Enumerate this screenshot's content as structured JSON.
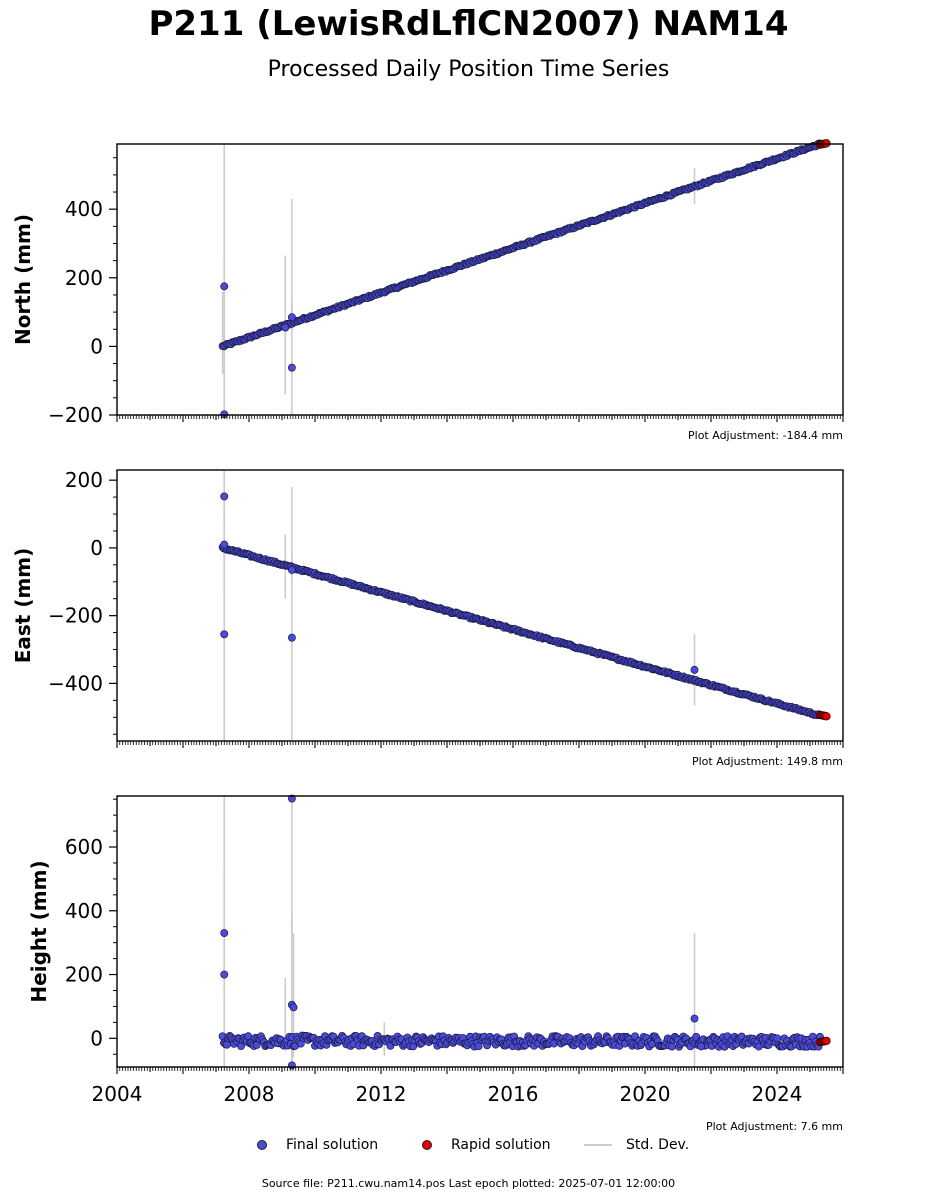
{
  "title": "P211 (LewisRdLflCN2007) NAM14",
  "subtitle": "Processed Daily Position Time Series",
  "footer": "Source file: P211.cwu.nam14.pos  Last epoch plotted: 2025-07-01 12:00:00",
  "legend": [
    {
      "label": "Final solution",
      "kind": "dot",
      "color": "#4b4bdb"
    },
    {
      "label": "Rapid solution",
      "kind": "dot",
      "color": "#e00000"
    },
    {
      "label": "Std. Dev.",
      "kind": "line",
      "color": "#cccccc"
    }
  ],
  "colors": {
    "final": "#4b4bdb",
    "rapid": "#e00000",
    "stddev": "#cccccc",
    "edge": "#1a1a40"
  },
  "chart_data": [
    {
      "type": "scatter",
      "ylabel": "North (mm)",
      "adjustment": "Plot Adjustment: -184.4 mm",
      "xlim": [
        2004.0,
        2026.0
      ],
      "ylim": [
        -200,
        590
      ],
      "yticks": [
        -200,
        0,
        200,
        400
      ],
      "x_tick_labels_shown": false,
      "xticks": [
        2004,
        2008,
        2012,
        2016,
        2020,
        2024
      ],
      "trend": {
        "start": [
          2007.2,
          0
        ],
        "end": [
          2025.3,
          590
        ]
      },
      "rapid": {
        "start": [
          2025.3,
          588
        ],
        "end": [
          2025.5,
          592
        ]
      },
      "outliers": [
        {
          "x": 2007.25,
          "y": 175,
          "err_lo": 85,
          "err_hi": 270
        },
        {
          "x": 2007.25,
          "y": -198,
          "err_lo": -200,
          "err_hi": 590
        },
        {
          "x": 2009.3,
          "y": -62,
          "err_lo": -200,
          "err_hi": 430
        },
        {
          "x": 2009.3,
          "y": 85,
          "err_lo": 45,
          "err_hi": 130
        },
        {
          "x": 2009.1,
          "y": 55,
          "err_lo": -140,
          "err_hi": 265
        }
      ],
      "errbars": [
        {
          "x": 2007.2,
          "lo": -80,
          "hi": 160
        },
        {
          "x": 2021.5,
          "lo": 415,
          "hi": 520
        }
      ]
    },
    {
      "type": "scatter",
      "ylabel": "East (mm)",
      "adjustment": "Plot Adjustment: 149.8 mm",
      "xlim": [
        2004.0,
        2026.0
      ],
      "ylim": [
        -570,
        230
      ],
      "yticks": [
        -400,
        -200,
        0,
        200
      ],
      "x_tick_labels_shown": false,
      "xticks": [
        2004,
        2008,
        2012,
        2016,
        2020,
        2024
      ],
      "trend": {
        "start": [
          2007.2,
          0
        ],
        "end": [
          2025.3,
          -495
        ]
      },
      "rapid": {
        "start": [
          2025.3,
          -493
        ],
        "end": [
          2025.5,
          -497
        ]
      },
      "outliers": [
        {
          "x": 2007.25,
          "y": 152,
          "err_lo": 70,
          "err_hi": 230
        },
        {
          "x": 2007.25,
          "y": 10,
          "err_lo": -130,
          "err_hi": 110
        },
        {
          "x": 2007.25,
          "y": -255,
          "err_lo": -570,
          "err_hi": 230
        },
        {
          "x": 2009.3,
          "y": -265,
          "err_lo": -570,
          "err_hi": 180
        },
        {
          "x": 2009.3,
          "y": -65,
          "err_lo": -90,
          "err_hi": -20
        },
        {
          "x": 2021.5,
          "y": -360,
          "err_lo": -465,
          "err_hi": -255
        }
      ],
      "errbars": [
        {
          "x": 2009.1,
          "lo": -150,
          "hi": 40
        }
      ]
    },
    {
      "type": "scatter",
      "ylabel": "Height (mm)",
      "adjustment": "Plot Adjustment: 7.6 mm",
      "xlim": [
        2004.0,
        2026.0
      ],
      "ylim": [
        -90,
        760
      ],
      "yticks": [
        0,
        200,
        400,
        600
      ],
      "x_tick_labels_shown": true,
      "xticks": [
        2004,
        2008,
        2012,
        2016,
        2020,
        2024
      ],
      "xticklabels": [
        "2004",
        "2008",
        "2012",
        "2016",
        "2020",
        "2024"
      ],
      "trend": {
        "start": [
          2007.2,
          -8
        ],
        "end": [
          2025.3,
          -10
        ]
      },
      "rapid": {
        "start": [
          2025.3,
          -12
        ],
        "end": [
          2025.5,
          -8
        ]
      },
      "outliers": [
        {
          "x": 2007.25,
          "y": 330,
          "err_lo": 130,
          "err_hi": 540
        },
        {
          "x": 2007.25,
          "y": 200,
          "err_lo": -90,
          "err_hi": 760
        },
        {
          "x": 2009.3,
          "y": 752,
          "err_lo": -90,
          "err_hi": 760
        },
        {
          "x": 2009.3,
          "y": 105,
          "err_lo": -50,
          "err_hi": 385
        },
        {
          "x": 2009.35,
          "y": 97,
          "err_lo": -60,
          "err_hi": 330
        },
        {
          "x": 2009.3,
          "y": -85,
          "err_lo": -90,
          "err_hi": 10
        },
        {
          "x": 2021.5,
          "y": 62,
          "err_lo": -90,
          "err_hi": 330
        },
        {
          "x": 2021.7,
          "y": -25,
          "err_lo": -40,
          "err_hi": -10
        }
      ],
      "errbars": [
        {
          "x": 2009.1,
          "lo": -40,
          "hi": 190
        },
        {
          "x": 2012.1,
          "lo": -55,
          "hi": 50
        }
      ]
    }
  ]
}
